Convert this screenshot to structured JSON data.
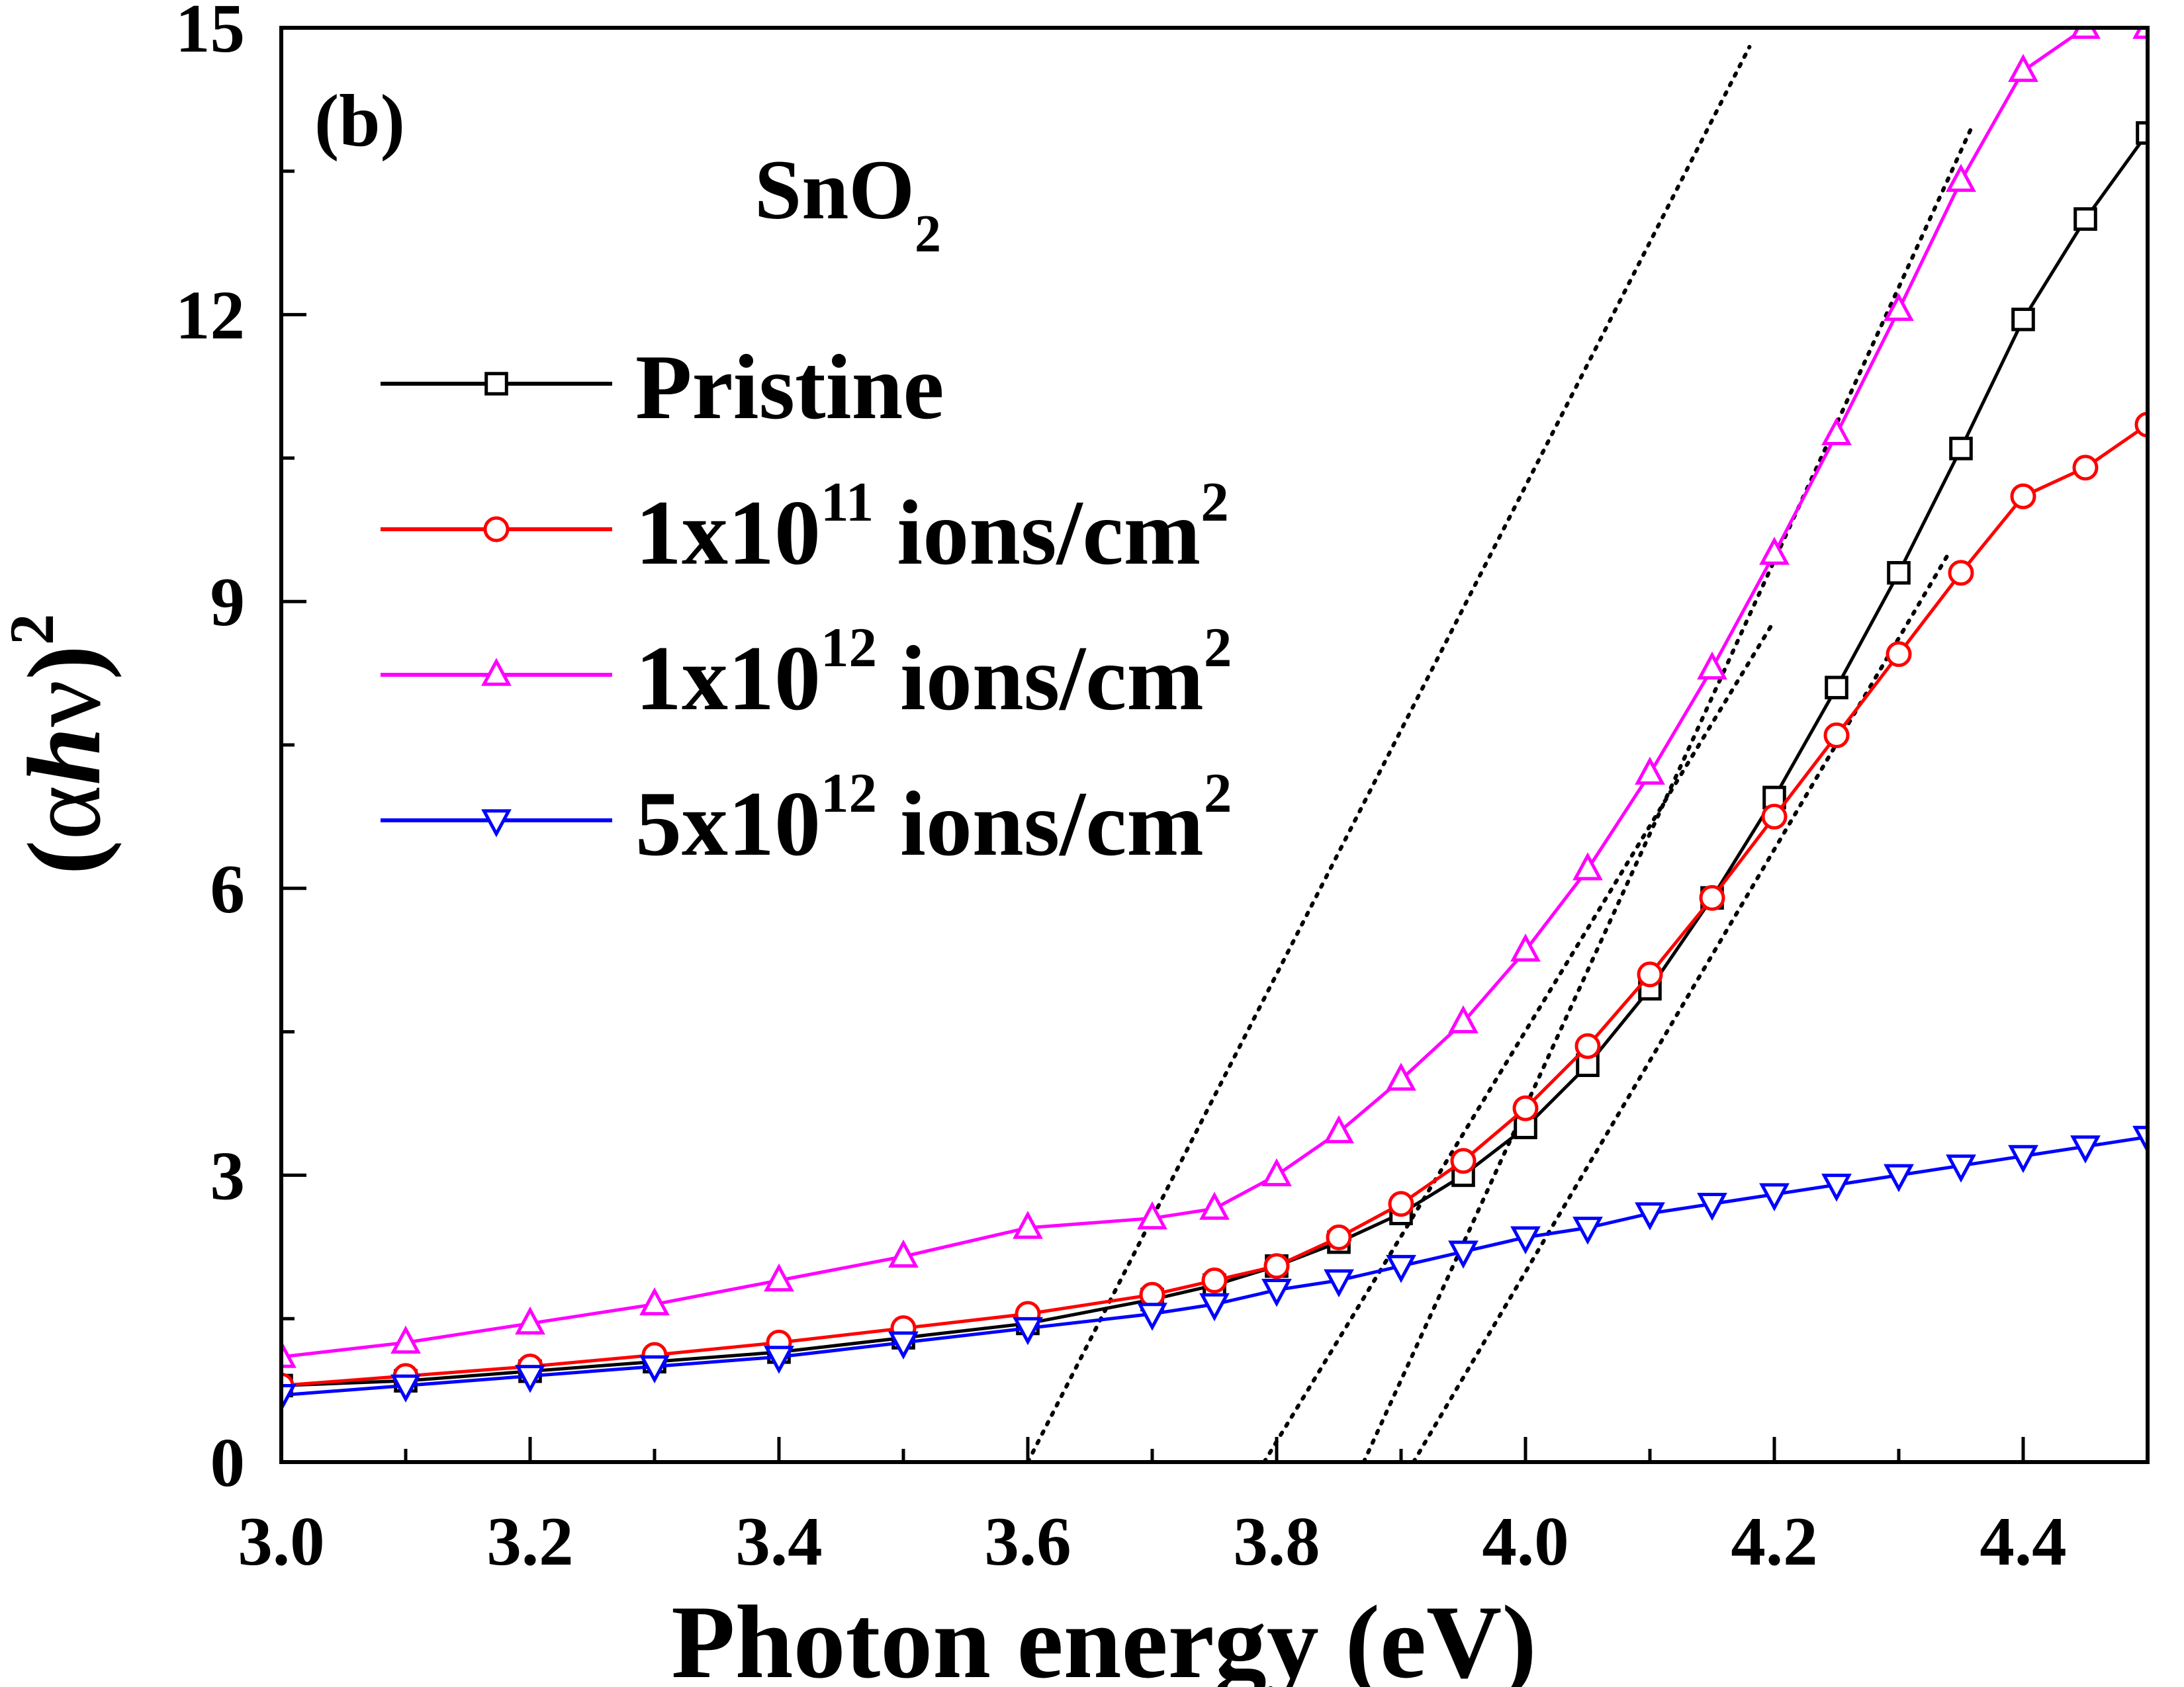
{
  "chart_data": {
    "type": "line",
    "panel_label": "(b)",
    "sample": {
      "base": "SnO",
      "subscript": "2"
    },
    "xlabel": "Photon energy (eV)",
    "ylabel": {
      "open": "(",
      "alpha": "α",
      "h": "h",
      "nu": "ν",
      "close": ")",
      "exponent": "2"
    },
    "xlim": [
      3.0,
      4.5
    ],
    "ylim": [
      0,
      15
    ],
    "x_ticks": [
      3.0,
      3.2,
      3.4,
      3.6,
      3.8,
      4.0,
      4.2,
      4.4
    ],
    "x_tick_labels": [
      "3.0",
      "3.2",
      "3.4",
      "3.6",
      "3.8",
      "4.0",
      "4.2",
      "4.4"
    ],
    "y_ticks": [
      0,
      3,
      6,
      9,
      12,
      15
    ],
    "y_tick_labels": [
      "0",
      "3",
      "6",
      "9",
      "12",
      "15"
    ],
    "legend_position": "upper-left",
    "x": [
      3.0,
      3.1,
      3.2,
      3.3,
      3.4,
      3.5,
      3.6,
      3.7,
      3.75,
      3.8,
      3.85,
      3.9,
      3.95,
      4.0,
      4.05,
      4.1,
      4.15,
      4.2,
      4.25,
      4.3,
      4.35,
      4.4,
      4.45,
      4.5
    ],
    "series": [
      {
        "name": "Pristine",
        "legend": {
          "main": "Pristine",
          "sup": "",
          "unit": "",
          "unit_sup": ""
        },
        "color": "#000000",
        "marker": "square",
        "values": [
          0.8,
          0.85,
          0.95,
          1.05,
          1.15,
          1.3,
          1.45,
          1.7,
          1.85,
          2.05,
          2.3,
          2.6,
          3.0,
          3.5,
          4.15,
          4.95,
          5.9,
          6.95,
          8.1,
          9.3,
          10.6,
          11.95,
          13.0,
          13.9
        ]
      },
      {
        "name": "1x10^11 ions/cm^2",
        "legend": {
          "main": "1x10",
          "sup": "11",
          "unit": " ions/cm",
          "unit_sup": "2"
        },
        "color": "#ff0000",
        "marker": "circle",
        "values": [
          0.8,
          0.9,
          1.0,
          1.12,
          1.25,
          1.4,
          1.55,
          1.75,
          1.9,
          2.05,
          2.35,
          2.7,
          3.15,
          3.7,
          4.35,
          5.1,
          5.9,
          6.75,
          7.6,
          8.45,
          9.3,
          10.1,
          10.4,
          10.85
        ]
      },
      {
        "name": "1x10^12 ions/cm^2",
        "legend": {
          "main": "1x10",
          "sup": "12",
          "unit": " ions/cm",
          "unit_sup": "2"
        },
        "color": "#ff00ff",
        "marker": "triangle-up",
        "values": [
          1.1,
          1.25,
          1.45,
          1.65,
          1.9,
          2.15,
          2.45,
          2.55,
          2.65,
          3.0,
          3.45,
          4.0,
          4.6,
          5.35,
          6.2,
          7.2,
          8.3,
          9.5,
          10.75,
          12.05,
          13.4,
          14.55,
          15.0,
          15.0
        ]
      },
      {
        "name": "5x10^12 ions/cm^2",
        "legend": {
          "main": "5x10",
          "sup": "12",
          "unit": " ions/cm",
          "unit_sup": "2"
        },
        "color": "#0000ff",
        "marker": "triangle-down",
        "values": [
          0.7,
          0.8,
          0.9,
          1.0,
          1.1,
          1.25,
          1.4,
          1.55,
          1.65,
          1.8,
          1.9,
          2.05,
          2.2,
          2.35,
          2.45,
          2.6,
          2.7,
          2.8,
          2.9,
          3.0,
          3.1,
          3.2,
          3.3,
          3.4
        ]
      }
    ],
    "tauc_fit_lines": [
      {
        "x": [
          3.6,
          4.18
        ],
        "y": [
          0,
          14.8
        ]
      },
      {
        "x": [
          3.79,
          4.2
        ],
        "y": [
          0,
          8.8
        ]
      },
      {
        "x": [
          3.87,
          4.36
        ],
        "y": [
          0,
          14.0
        ]
      },
      {
        "x": [
          3.91,
          4.34
        ],
        "y": [
          0,
          9.5
        ]
      }
    ]
  }
}
